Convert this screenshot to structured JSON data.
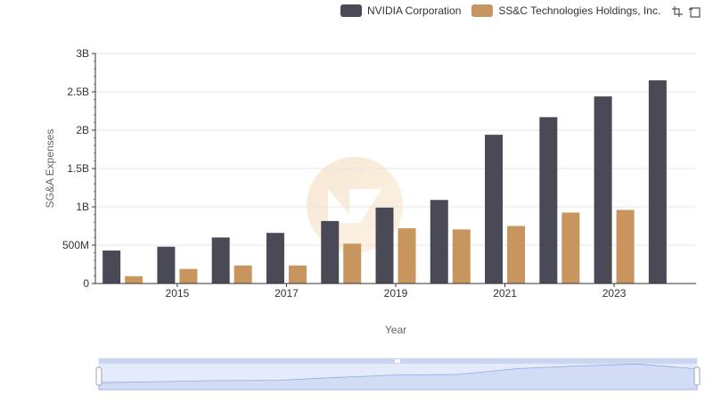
{
  "colors": {
    "nvidia": "#4a4a56",
    "ssc": "#c9955e",
    "axis": "#333333",
    "grid": "#e6e6e6",
    "zoom_fill": "#d3dcf5",
    "zoom_line": "#8fa8e6"
  },
  "toolbar": {
    "zoom_icon": "zoom-select-icon",
    "reset_icon": "zoom-reset-icon"
  },
  "chart_data": {
    "type": "bar",
    "xlabel": "Year",
    "ylabel": "SG&A Expenses",
    "ylim": [
      0,
      3000000000
    ],
    "yticks": [
      "0",
      "500M",
      "1B",
      "1.5B",
      "2B",
      "2.5B",
      "3B"
    ],
    "xticks": [
      "2015",
      "2017",
      "2019",
      "2021",
      "2023"
    ],
    "categories": [
      "2014",
      "2015",
      "2016",
      "2017",
      "2018",
      "2019",
      "2020",
      "2021",
      "2022",
      "2023",
      "2024"
    ],
    "legend_position": "top-right",
    "grid": true,
    "series": [
      {
        "name": "NVIDIA Corporation",
        "values": [
          430000000,
          480000000,
          600000000,
          660000000,
          815000000,
          990000000,
          1090000000,
          1940000000,
          2170000000,
          2440000000,
          2650000000
        ]
      },
      {
        "name": "SS&C Technologies Holdings, Inc.",
        "values": [
          95000000,
          190000000,
          235000000,
          235000000,
          520000000,
          720000000,
          705000000,
          750000000,
          925000000,
          960000000,
          null
        ]
      }
    ]
  }
}
